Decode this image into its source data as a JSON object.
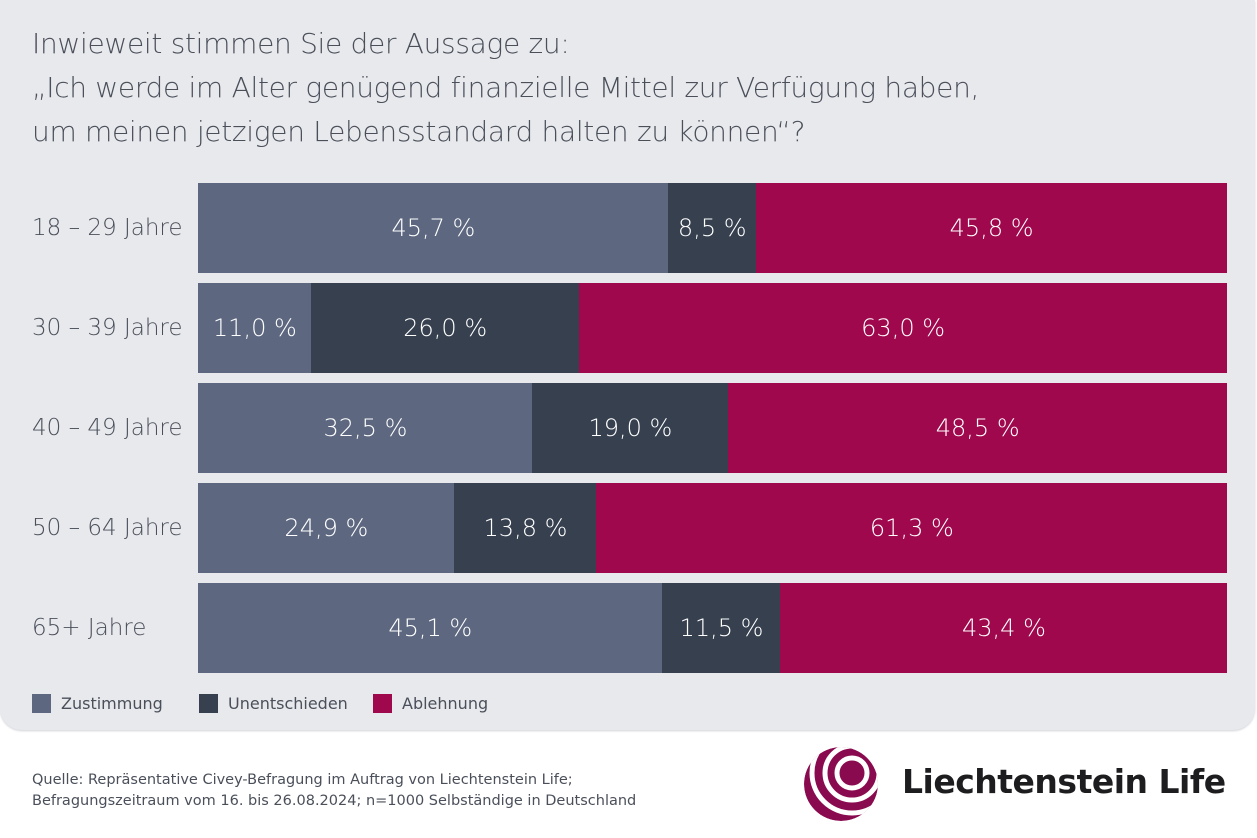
{
  "title_lines": [
    "Inwieweit stimmen Sie der Aussage zu:",
    "„Ich werde im Alter genügend finanzielle Mittel zur Verfügung haben,",
    "um meinen jetzigen Lebensstandard halten zu können“?"
  ],
  "chart_data": {
    "type": "bar",
    "orientation": "horizontal",
    "stacked": true,
    "categories": [
      "18 – 29 Jahre",
      "30 – 39 Jahre",
      "40 – 49 Jahre",
      "50 – 64 Jahre",
      "65+ Jahre"
    ],
    "series": [
      {
        "name": "Zustimmung",
        "color": "#5d6880",
        "values": [
          45.7,
          11.0,
          32.5,
          24.9,
          45.1
        ],
        "labels": [
          "45,7 %",
          "11,0 %",
          "32,5 %",
          "24,9 %",
          "45,1 %"
        ]
      },
      {
        "name": "Unentschieden",
        "color": "#36404f",
        "values": [
          8.5,
          26.0,
          19.0,
          13.8,
          11.5
        ],
        "labels": [
          "8,5 %",
          "26,0 %",
          "19,0 %",
          "13,8 %",
          "11,5 %"
        ]
      },
      {
        "name": "Ablehnung",
        "color": "#a0084e",
        "values": [
          45.8,
          63.0,
          48.5,
          61.3,
          43.4
        ],
        "labels": [
          "45,8 %",
          "63,0 %",
          "48,5 %",
          "61,3 %",
          "43,4 %"
        ]
      }
    ],
    "xlim": [
      0,
      100
    ],
    "grid": false,
    "legend_position": "bottom-left"
  },
  "source_lines": [
    "Quelle: Repräsentative Civey-Befragung im Auftrag von Liechtenstein Life;",
    "Befragungszeitraum vom 16. bis 26.08.2024; n=1000 Selbständige in Deutschland"
  ],
  "brand": "Liechtenstein Life",
  "brand_color": "#8a0a4f"
}
